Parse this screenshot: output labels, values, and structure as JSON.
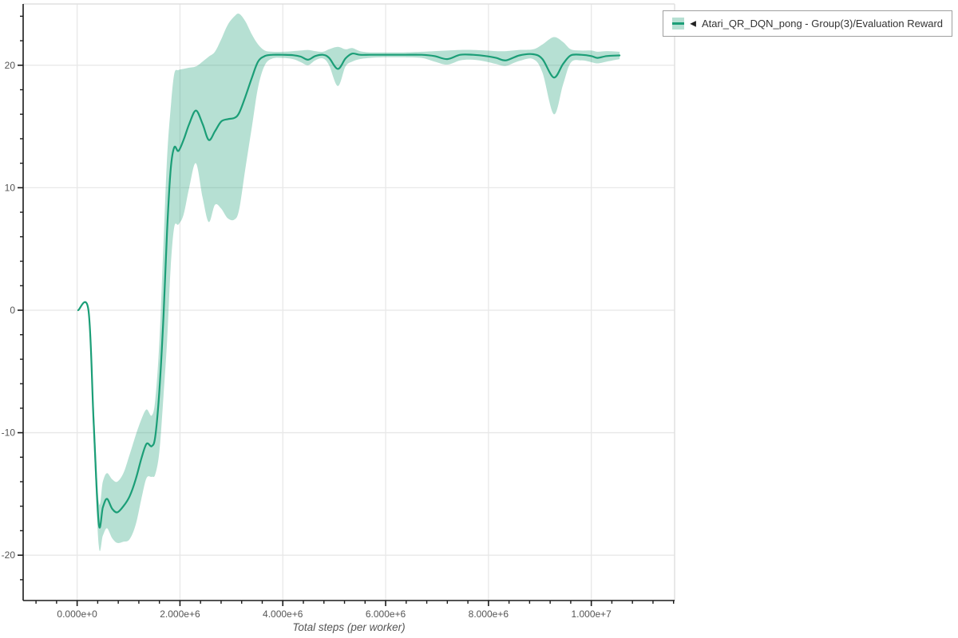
{
  "legend": {
    "collapse_icon": "◀",
    "label": "Atari_QR_DQN_pong - Group(3)/Evaluation Reward"
  },
  "colors": {
    "line": "#1b9e77",
    "band": "rgba(27,158,119,0.32)",
    "grid": "#e8e8e8",
    "plot_border": "#e0e0e0",
    "axis": "#1a1a1a",
    "tick_label": "#555555"
  },
  "axes": {
    "x_label": "Total steps (per worker)",
    "x_ticks": [
      {
        "value_millions": 0,
        "label": "0.000e+0"
      },
      {
        "value_millions": 2,
        "label": "2.000e+6"
      },
      {
        "value_millions": 4,
        "label": "4.000e+6"
      },
      {
        "value_millions": 6,
        "label": "6.000e+6"
      },
      {
        "value_millions": 8,
        "label": "8.000e+6"
      },
      {
        "value_millions": 10,
        "label": "1.000e+7"
      }
    ],
    "y_ticks": [
      {
        "value": 20,
        "label": "20"
      },
      {
        "value": 10,
        "label": "10"
      },
      {
        "value": 0,
        "label": "0"
      },
      {
        "value": -10,
        "label": "-10"
      },
      {
        "value": -20,
        "label": "-20"
      }
    ],
    "x_domain_millions": [
      -1.05,
      11.62
    ],
    "y_domain": [
      -23.7,
      25.0
    ],
    "x_minor_step_millions": 0.4,
    "y_minor_step": 2
  },
  "chart_data": {
    "type": "line",
    "title": "",
    "xlabel": "Total steps (per worker)",
    "ylabel": "",
    "x_unit": "steps",
    "x_scale": 1000000,
    "xlim_millions": [
      -1.05,
      11.62
    ],
    "ylim": [
      -23.7,
      25.0
    ],
    "grid": "major-only",
    "legend_position": "top-right-outside",
    "series": [
      {
        "name": "Atari_QR_DQN_pong - Group(3)/Evaluation Reward",
        "has_confidence_band": true,
        "x_millions": [
          0.02,
          0.22,
          0.32,
          0.42,
          0.5,
          0.58,
          0.68,
          0.78,
          0.9,
          1.02,
          1.14,
          1.25,
          1.35,
          1.45,
          1.52,
          1.6,
          1.68,
          1.75,
          1.82,
          1.89,
          1.97,
          2.07,
          2.18,
          2.31,
          2.44,
          2.56,
          2.68,
          2.8,
          2.93,
          3.06,
          3.15,
          3.27,
          3.4,
          3.52,
          3.65,
          3.8,
          4.0,
          4.2,
          4.35,
          4.49,
          4.63,
          4.78,
          4.9,
          5.07,
          5.22,
          5.35,
          5.5,
          5.7,
          6.0,
          6.35,
          6.7,
          6.95,
          7.2,
          7.45,
          7.7,
          7.95,
          8.15,
          8.34,
          8.6,
          8.87,
          9.05,
          9.27,
          9.45,
          9.6,
          9.8,
          10.0,
          10.12,
          10.3,
          10.55
        ],
        "y": [
          0.0,
          0.0,
          -9.0,
          -17.4,
          -16.1,
          -15.4,
          -16.2,
          -16.5,
          -16.0,
          -15.2,
          -13.8,
          -12.1,
          -10.9,
          -11.1,
          -10.3,
          -6.5,
          -0.5,
          6.5,
          11.5,
          13.3,
          13.0,
          13.9,
          15.2,
          16.3,
          15.2,
          13.9,
          14.6,
          15.4,
          15.6,
          15.7,
          16.1,
          17.4,
          19.0,
          20.3,
          20.75,
          20.85,
          20.85,
          20.82,
          20.7,
          20.45,
          20.75,
          20.85,
          20.6,
          19.7,
          20.55,
          20.95,
          20.85,
          20.85,
          20.85,
          20.85,
          20.85,
          20.75,
          20.5,
          20.85,
          20.85,
          20.75,
          20.6,
          20.4,
          20.8,
          20.9,
          20.5,
          19.0,
          20.1,
          20.8,
          20.85,
          20.75,
          20.6,
          20.75,
          20.8
        ],
        "band_low": [
          0.0,
          -0.1,
          -10.5,
          -19.2,
          -18.4,
          -17.8,
          -18.6,
          -19.0,
          -18.9,
          -18.7,
          -17.5,
          -15.4,
          -13.7,
          -13.6,
          -13.4,
          -11.5,
          -7.0,
          -2.5,
          3.5,
          6.8,
          7.0,
          7.8,
          10.0,
          12.0,
          9.2,
          7.2,
          8.6,
          8.3,
          7.5,
          7.4,
          8.2,
          11.5,
          15.0,
          18.2,
          20.0,
          20.55,
          20.6,
          20.5,
          20.25,
          20.0,
          20.4,
          20.55,
          20.0,
          18.3,
          19.9,
          20.3,
          20.5,
          20.6,
          20.65,
          20.65,
          20.6,
          20.3,
          20.05,
          20.4,
          20.45,
          20.3,
          20.1,
          19.95,
          20.35,
          20.5,
          19.4,
          16.0,
          18.4,
          20.2,
          20.4,
          20.25,
          20.15,
          20.3,
          20.5
        ],
        "band_high": [
          0.0,
          0.1,
          -7.5,
          -15.6,
          -14.0,
          -13.3,
          -13.8,
          -14.0,
          -13.3,
          -11.8,
          -10.2,
          -8.9,
          -8.1,
          -8.6,
          -7.3,
          -2.5,
          5.5,
          12.5,
          16.5,
          19.3,
          19.6,
          19.7,
          19.8,
          19.9,
          20.3,
          20.7,
          21.1,
          22.1,
          23.3,
          24.0,
          24.2,
          23.6,
          22.5,
          21.7,
          21.2,
          21.1,
          21.1,
          21.15,
          21.2,
          21.25,
          21.15,
          21.1,
          21.3,
          21.5,
          21.3,
          21.4,
          21.15,
          21.05,
          21.05,
          21.05,
          21.1,
          21.15,
          21.2,
          21.25,
          21.25,
          21.2,
          21.15,
          21.15,
          21.25,
          21.3,
          21.7,
          22.3,
          21.9,
          21.3,
          21.2,
          21.2,
          21.1,
          21.15,
          21.1
        ]
      }
    ]
  }
}
